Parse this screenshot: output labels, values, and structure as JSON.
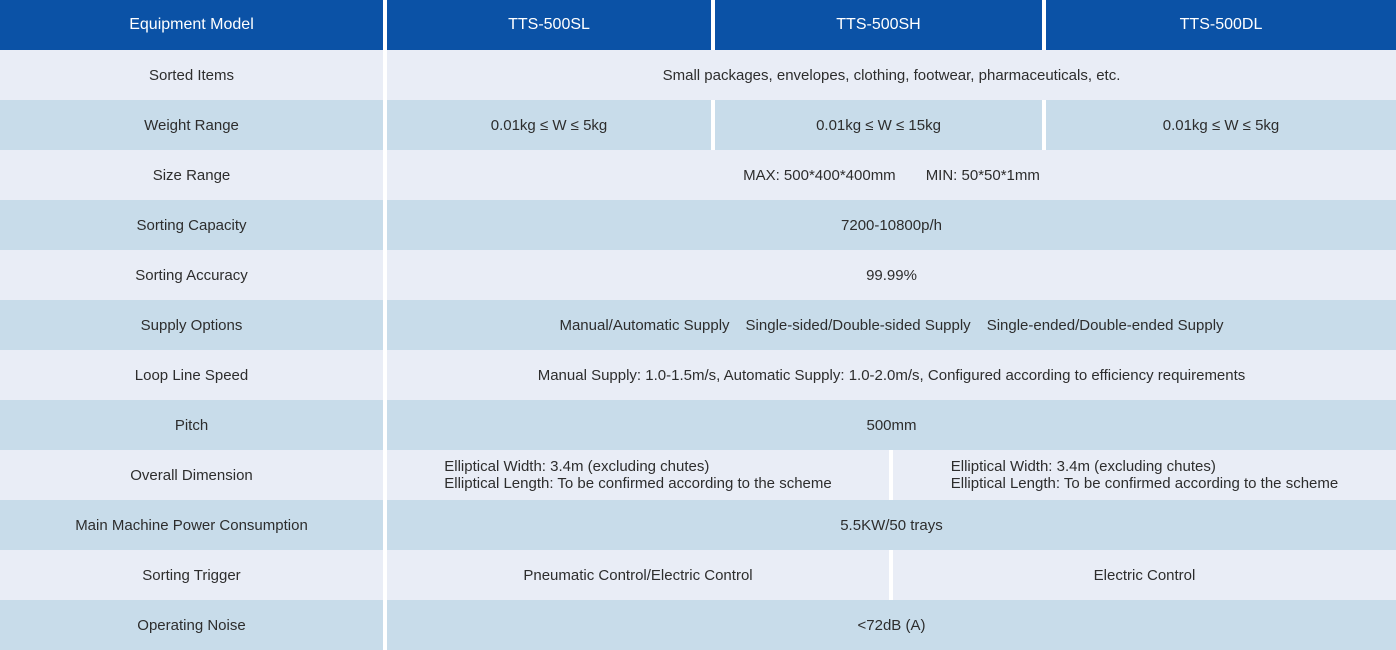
{
  "table": {
    "title": "Equipment specification comparison table",
    "colors": {
      "header_bg": "#0B52A6",
      "header_text": "#FFFFFF",
      "row_light_bg": "#E9EDF6",
      "row_blue_bg": "#C8DCEA",
      "body_text": "#2D2D2D",
      "divider": "#FFFFFF"
    },
    "header": {
      "label_col": "Equipment Model",
      "models": [
        "TTS-500SL",
        "TTS-500SH",
        "TTS-500DL"
      ]
    },
    "rows": {
      "sorted_items": {
        "label": "Sorted Items",
        "value": "Small packages, envelopes, clothing, footwear, pharmaceuticals, etc."
      },
      "weight_range": {
        "label": "Weight Range",
        "values": [
          "0.01kg ≤ W ≤ 5kg",
          "0.01kg ≤ W ≤ 15kg",
          "0.01kg ≤ W ≤ 5kg"
        ]
      },
      "size_range": {
        "label": "Size Range",
        "max": "MAX: 500*400*400mm",
        "min": "MIN: 50*50*1mm"
      },
      "sorting_capacity": {
        "label": "Sorting Capacity",
        "value": "7200-10800p/h"
      },
      "sorting_accuracy": {
        "label": "Sorting Accuracy",
        "value": "99.99%"
      },
      "supply_options": {
        "label": "Supply Options",
        "options": [
          "Manual/Automatic Supply",
          "Single-sided/Double-sided Supply",
          "Single-ended/Double-ended Supply"
        ]
      },
      "loop_line_speed": {
        "label": "Loop Line Speed",
        "value": "Manual Supply: 1.0-1.5m/s, Automatic Supply: 1.0-2.0m/s, Configured according to efficiency requirements"
      },
      "pitch": {
        "label": "Pitch",
        "value": "500mm"
      },
      "overall_dimension": {
        "label": "Overall Dimension",
        "left": {
          "line1": "Elliptical Width: 3.4m (excluding chutes)",
          "line2": "Elliptical Length: To be confirmed according to the scheme"
        },
        "right": {
          "line1": "Elliptical Width: 3.4m (excluding chutes)",
          "line2": "Elliptical Length: To be confirmed according to the scheme"
        }
      },
      "main_machine_power_consumption": {
        "label": "Main Machine Power Consumption",
        "value": "5.5KW/50 trays"
      },
      "sorting_trigger": {
        "label": "Sorting Trigger",
        "left": "Pneumatic Control/Electric Control",
        "right": "Electric Control"
      },
      "operating_noise": {
        "label": "Operating Noise",
        "value": "<72dB (A)"
      }
    }
  }
}
